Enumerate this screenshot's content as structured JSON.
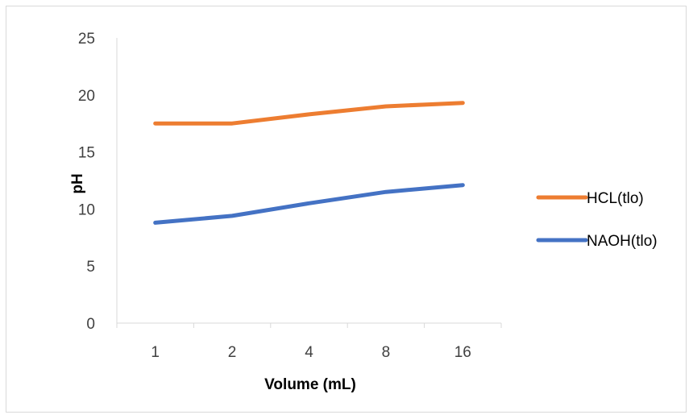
{
  "chart_data": {
    "type": "line",
    "title": "",
    "xlabel": "Volume (mL)",
    "ylabel": "pH",
    "categories": [
      "1",
      "2",
      "4",
      "8",
      "16"
    ],
    "ylim": [
      0,
      25
    ],
    "yticks": [
      0,
      5,
      10,
      15,
      20,
      25
    ],
    "grid": false,
    "legend_position": "right",
    "series": [
      {
        "name": "HCL(tlo)",
        "color": "#ED7D31",
        "values": [
          17.5,
          17.5,
          18.3,
          19.0,
          19.3
        ]
      },
      {
        "name": "NAOH(tlo)",
        "color": "#4472C4",
        "values": [
          8.8,
          9.4,
          10.5,
          11.5,
          12.1
        ]
      }
    ]
  }
}
